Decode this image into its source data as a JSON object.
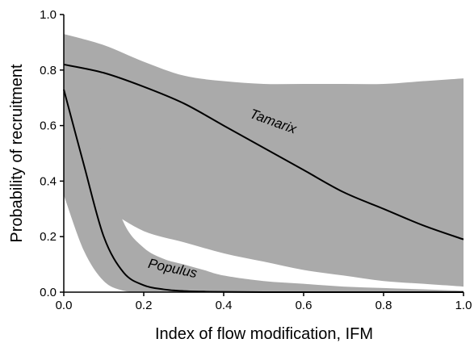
{
  "chart_data": {
    "type": "line",
    "title": "",
    "xlabel": "Index of flow modification, IFM",
    "ylabel": "Probability of recruitment",
    "xlim": [
      0,
      1
    ],
    "ylim": [
      0,
      1
    ],
    "x_ticks": [
      "0.0",
      "0.2",
      "0.4",
      "0.6",
      "0.8",
      "1.0"
    ],
    "y_ticks": [
      "0.0",
      "0.2",
      "0.4",
      "0.6",
      "0.8",
      "1.0"
    ],
    "grid": false,
    "legend": "none",
    "band_color": "#aaaaaa",
    "line_color": "#000000",
    "series": [
      {
        "name": "Tamarix",
        "x": [
          0.0,
          0.1,
          0.2,
          0.3,
          0.4,
          0.5,
          0.6,
          0.7,
          0.8,
          0.9,
          1.0
        ],
        "y": [
          0.82,
          0.79,
          0.74,
          0.68,
          0.6,
          0.52,
          0.44,
          0.36,
          0.3,
          0.24,
          0.19
        ],
        "lower": [
          0.35,
          0.3,
          0.22,
          0.18,
          0.14,
          0.11,
          0.08,
          0.06,
          0.04,
          0.03,
          0.02
        ],
        "upper": [
          0.93,
          0.89,
          0.83,
          0.78,
          0.76,
          0.75,
          0.75,
          0.75,
          0.75,
          0.76,
          0.77
        ]
      },
      {
        "name": "Populus",
        "x": [
          0.0,
          0.05,
          0.1,
          0.15,
          0.2,
          0.25,
          0.3,
          0.35,
          0.4,
          0.5,
          0.6,
          0.7,
          0.8,
          0.9,
          1.0
        ],
        "y": [
          0.73,
          0.46,
          0.2,
          0.07,
          0.025,
          0.01,
          0.004,
          0.002,
          0.001,
          0.0,
          0.0,
          0.0,
          0.0,
          0.0,
          0.0
        ],
        "lower": [
          0.35,
          0.15,
          0.04,
          0.005,
          0.0,
          0.0,
          0.0,
          0.0,
          0.0,
          0.0,
          0.0,
          0.0,
          0.0,
          0.0,
          0.0
        ],
        "upper": [
          0.9,
          0.78,
          0.47,
          0.25,
          0.16,
          0.12,
          0.1,
          0.08,
          0.06,
          0.04,
          0.03,
          0.02,
          0.015,
          0.01,
          0.005
        ]
      }
    ],
    "annotations": [
      {
        "text": "Tamarix",
        "x": 0.52,
        "y": 0.6,
        "angle": 20
      },
      {
        "text": "Populus",
        "x": 0.27,
        "y": 0.07,
        "angle": 12
      }
    ]
  }
}
